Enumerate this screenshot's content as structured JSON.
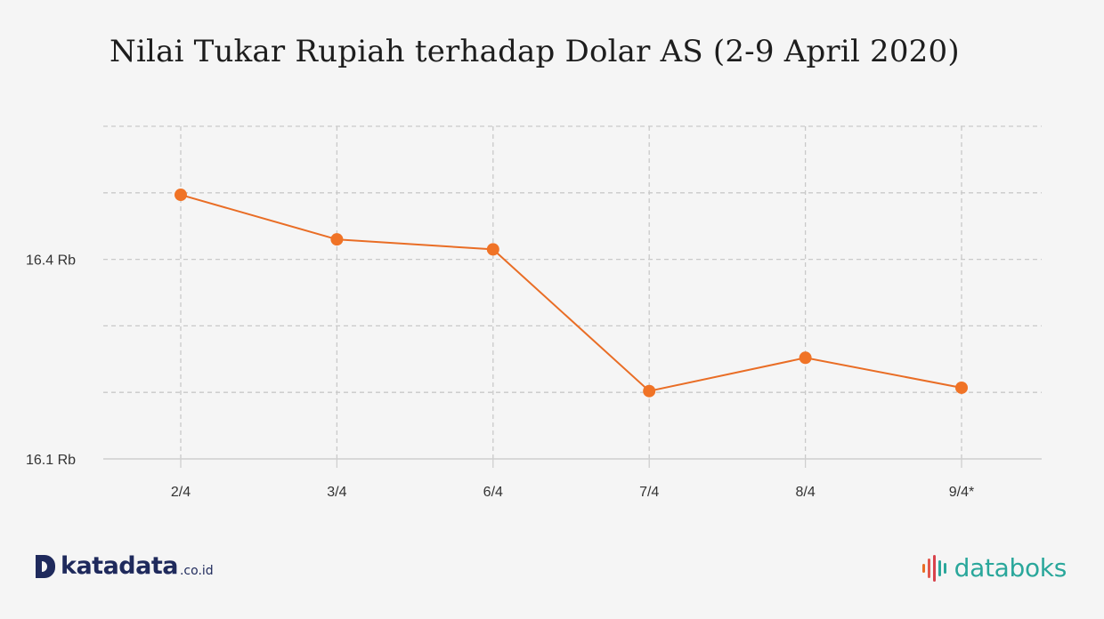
{
  "title": "Nilai Tukar Rupiah terhadap Dolar AS (2-9 April 2020)",
  "chart_data": {
    "type": "line",
    "title": "Nilai Tukar Rupiah terhadap Dolar AS (2-9 April 2020)",
    "xlabel": "",
    "ylabel": "",
    "categories": [
      "2/4",
      "3/4",
      "6/4",
      "7/4",
      "8/4",
      "9/4*"
    ],
    "series": [
      {
        "values": [
          16497,
          16430,
          16415,
          16202,
          16252,
          16207
        ]
      }
    ],
    "ylim": [
      16100,
      16600
    ],
    "y_ticks": [
      16100,
      16400
    ],
    "y_tick_labels": [
      "16.1 Rb",
      "16.4 Rb"
    ],
    "gridlines": [
      16200,
      16300,
      16400,
      16500,
      16600
    ],
    "grid": true,
    "line_color": "#e96d25",
    "marker_color": "#f07326"
  },
  "brand": {
    "left_name": "katadata",
    "left_tld": ".co.id",
    "right_name": "databoks",
    "right_color": "#2aa79b",
    "left_color": "#1f2a5c"
  }
}
